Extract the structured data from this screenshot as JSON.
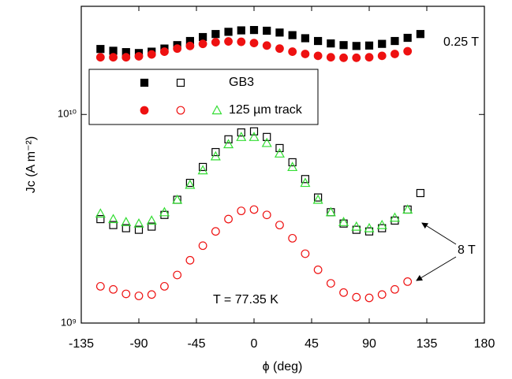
{
  "chart_data": {
    "type": "scatter",
    "x_label": "ϕ (deg)",
    "y_label": "Jc (A m⁻²)",
    "xlim": [
      -135,
      180
    ],
    "xticks": [
      -135,
      -90,
      -45,
      0,
      45,
      90,
      135,
      180
    ],
    "ylim": [
      1000000000.0,
      33000000000.0
    ],
    "log_y": true,
    "yticks": [
      {
        "value": 1000000000.0,
        "label": "10⁹"
      },
      {
        "value": 10000000000.0,
        "label": "10¹⁰"
      }
    ],
    "series": [
      {
        "name": "GB3",
        "color": "#000000",
        "marker": "square",
        "filled": true,
        "x": [
          -120,
          -110,
          -100,
          -90,
          -80,
          -70,
          -60,
          -50,
          -40,
          -30,
          -20,
          -10,
          0,
          10,
          20,
          30,
          40,
          50,
          60,
          70,
          80,
          90,
          100,
          110,
          120,
          130
        ],
        "values": [
          20600000000.0,
          20200000000.0,
          19900000000.0,
          19700000000.0,
          20000000000.0,
          20700000000.0,
          21500000000.0,
          22500000000.0,
          23500000000.0,
          24300000000.0,
          24900000000.0,
          25300000000.0,
          25400000000.0,
          25200000000.0,
          24700000000.0,
          24000000000.0,
          23200000000.0,
          22500000000.0,
          21900000000.0,
          21500000000.0,
          21300000000.0,
          21400000000.0,
          21800000000.0,
          22500000000.0,
          23300000000.0,
          24300000000.0
        ]
      },
      {
        "name": "125 µm track",
        "color": "#ee1111",
        "marker": "circle",
        "filled": true,
        "x": [
          -120,
          -110,
          -100,
          -90,
          -80,
          -70,
          -60,
          -50,
          -40,
          -30,
          -20,
          -10,
          0,
          10,
          20,
          30,
          40,
          50,
          60,
          70,
          80,
          90,
          100,
          110,
          120
        ],
        "values": [
          18800000000.0,
          18800000000.0,
          18800000000.0,
          19000000000.0,
          19400000000.0,
          20000000000.0,
          20700000000.0,
          21300000000.0,
          21800000000.0,
          22200000000.0,
          22400000000.0,
          22300000000.0,
          22000000000.0,
          21400000000.0,
          20700000000.0,
          20000000000.0,
          19500000000.0,
          19100000000.0,
          18800000000.0,
          18700000000.0,
          18700000000.0,
          18800000000.0,
          19100000000.0,
          19500000000.0,
          20100000000.0
        ]
      },
      {
        "name": "GB3",
        "color": "#000000",
        "marker": "square",
        "filled": false,
        "x": [
          -120,
          -110,
          -100,
          -90,
          -80,
          -70,
          -60,
          -50,
          -40,
          -30,
          -20,
          -10,
          0,
          10,
          20,
          30,
          40,
          50,
          60,
          70,
          80,
          90,
          100,
          110,
          120,
          130
        ],
        "values": [
          3150000000.0,
          2950000000.0,
          2850000000.0,
          2800000000.0,
          2900000000.0,
          3300000000.0,
          3900000000.0,
          4700000000.0,
          5600000000.0,
          6600000000.0,
          7600000000.0,
          8200000000.0,
          8300000000.0,
          7800000000.0,
          6900000000.0,
          5900000000.0,
          4900000000.0,
          4000000000.0,
          3400000000.0,
          3000000000.0,
          2800000000.0,
          2750000000.0,
          2850000000.0,
          3100000000.0,
          3500000000.0,
          4200000000.0
        ]
      },
      {
        "name": "125 µm track",
        "color": "#ee1111",
        "marker": "circle",
        "filled": false,
        "x": [
          -120,
          -110,
          -100,
          -90,
          -80,
          -70,
          -60,
          -50,
          -40,
          -30,
          -20,
          -10,
          0,
          10,
          20,
          30,
          40,
          50,
          60,
          70,
          80,
          90,
          100,
          110,
          120
        ],
        "values": [
          1500000000.0,
          1450000000.0,
          1380000000.0,
          1350000000.0,
          1370000000.0,
          1500000000.0,
          1700000000.0,
          2000000000.0,
          2350000000.0,
          2750000000.0,
          3150000000.0,
          3450000000.0,
          3500000000.0,
          3300000000.0,
          2950000000.0,
          2550000000.0,
          2150000000.0,
          1800000000.0,
          1550000000.0,
          1400000000.0,
          1330000000.0,
          1320000000.0,
          1370000000.0,
          1450000000.0,
          1580000000.0
        ]
      },
      {
        "name": "125 µm track",
        "color": "#33dd33",
        "marker": "triangle",
        "filled": false,
        "x": [
          -120,
          -110,
          -100,
          -90,
          -80,
          -70,
          -60,
          -50,
          -40,
          -30,
          -20,
          -10,
          0,
          10,
          20,
          30,
          40,
          50,
          60,
          70,
          80,
          90,
          100,
          110,
          120
        ],
        "values": [
          3350000000.0,
          3150000000.0,
          3050000000.0,
          3000000000.0,
          3100000000.0,
          3400000000.0,
          3900000000.0,
          4600000000.0,
          5400000000.0,
          6300000000.0,
          7200000000.0,
          7800000000.0,
          7800000000.0,
          7300000000.0,
          6500000000.0,
          5600000000.0,
          4700000000.0,
          3900000000.0,
          3400000000.0,
          3050000000.0,
          2900000000.0,
          2850000000.0,
          2950000000.0,
          3200000000.0,
          3500000000.0
        ]
      }
    ],
    "annotations": [
      "0.25 T",
      "8 T",
      "T = 77.35 K"
    ]
  }
}
